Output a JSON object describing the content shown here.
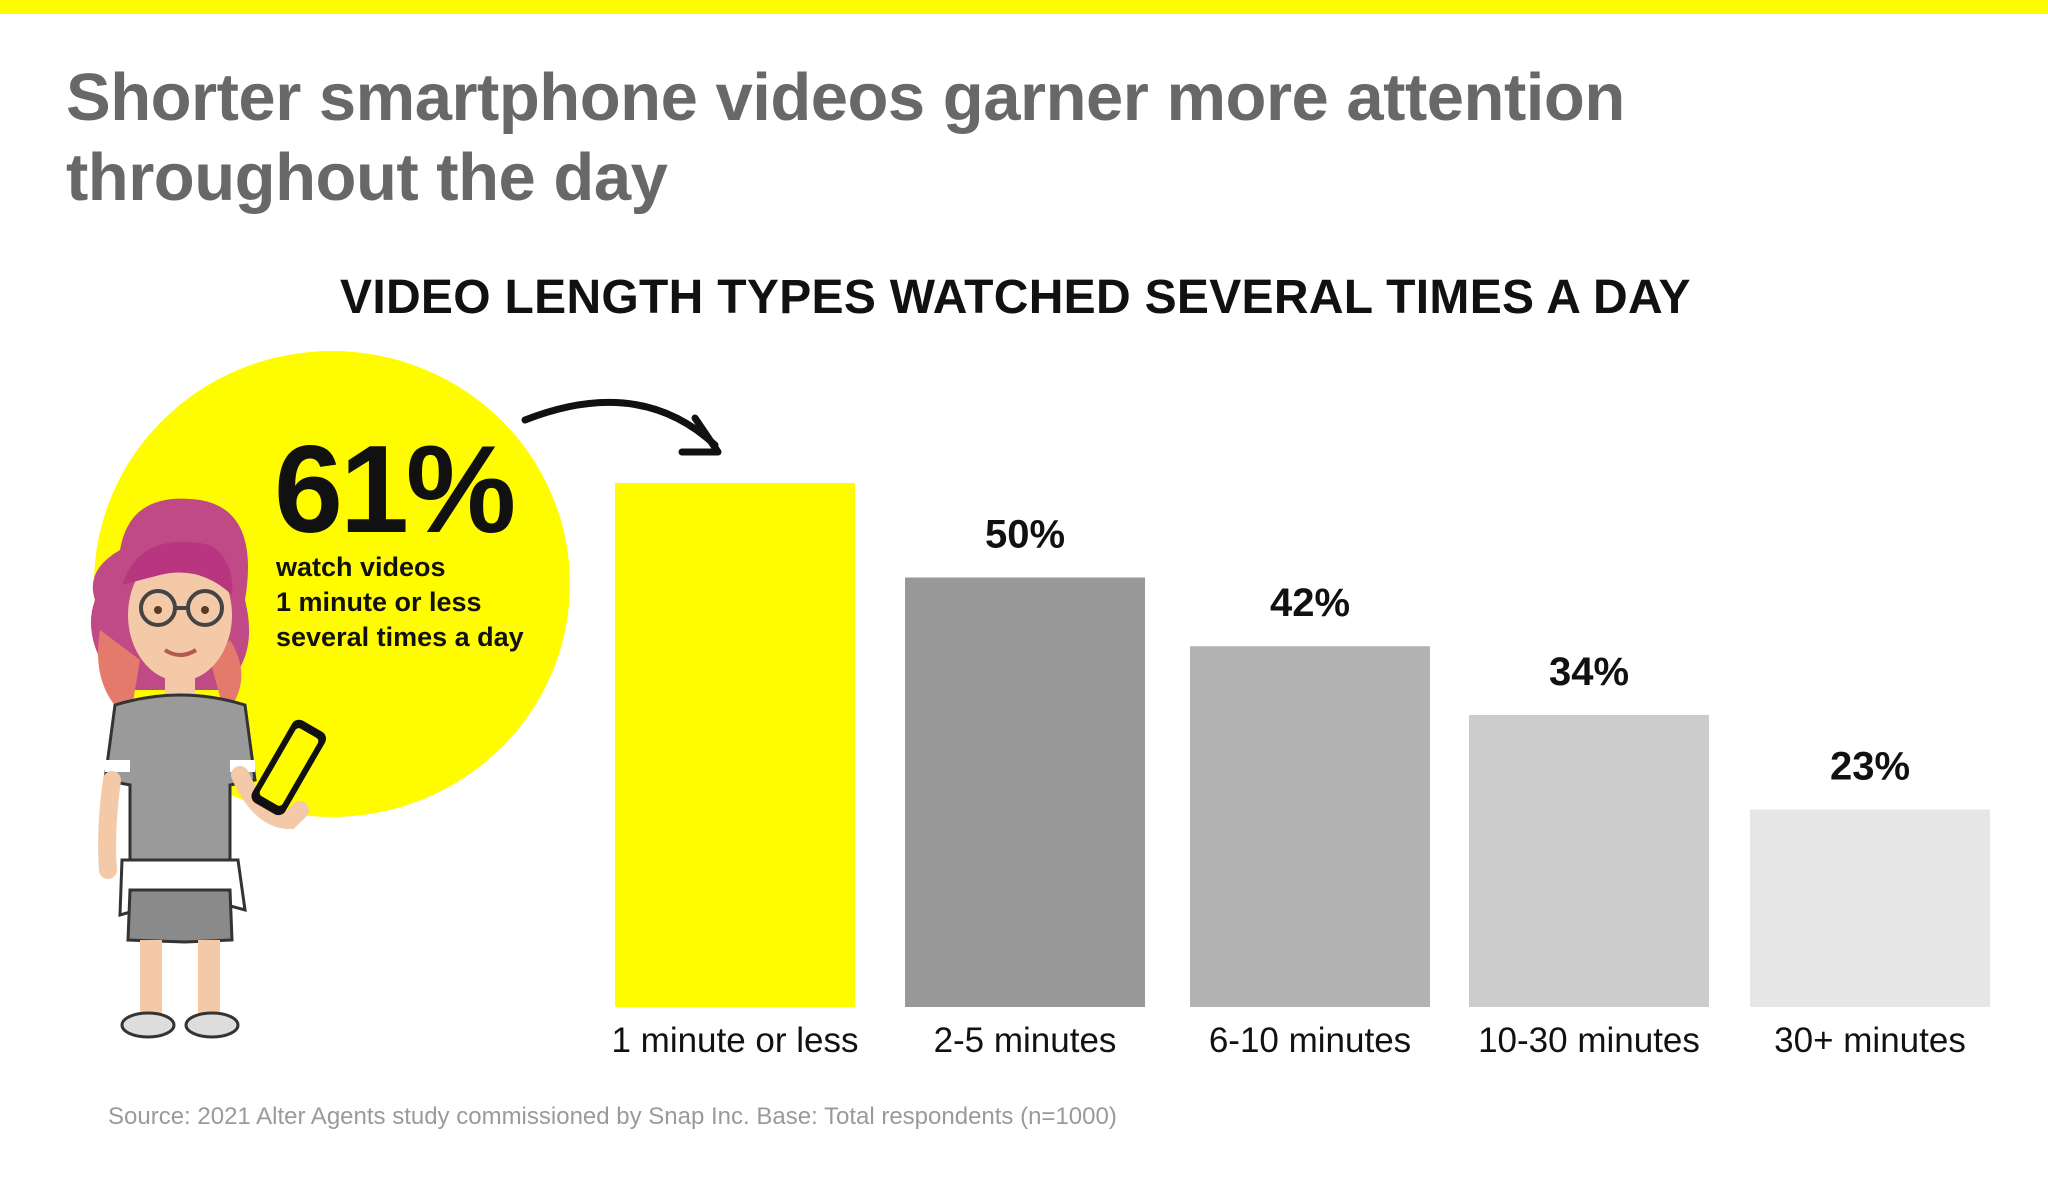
{
  "headline": "Shorter smartphone videos garner more attention\nthroughout the day",
  "callout": {
    "value": "61%",
    "lines": [
      "watch videos",
      "1 minute or less",
      "several times a day"
    ]
  },
  "source": "Source: 2021 Alter Agents study commissioned by Snap Inc. Base: Total respondents (n=1000)",
  "colors": {
    "accent": "#FFFC00",
    "bars": [
      "#FFFC00",
      "#999999",
      "#B3B3B3",
      "#CCCCCC",
      "#E6E6E6"
    ]
  },
  "chart_data": {
    "type": "bar",
    "title": "VIDEO LENGTH TYPES WATCHED SEVERAL TIMES A DAY",
    "categories": [
      "1 minute or less",
      "2-5 minutes",
      "6-10 minutes",
      "10-30 minutes",
      "30+ minutes"
    ],
    "values": [
      61,
      50,
      42,
      34,
      23
    ],
    "value_labels": [
      "",
      "50%",
      "42%",
      "34%",
      "23%"
    ],
    "xlabel": "",
    "ylabel": "",
    "ylim": [
      0,
      61
    ],
    "grid": false
  }
}
